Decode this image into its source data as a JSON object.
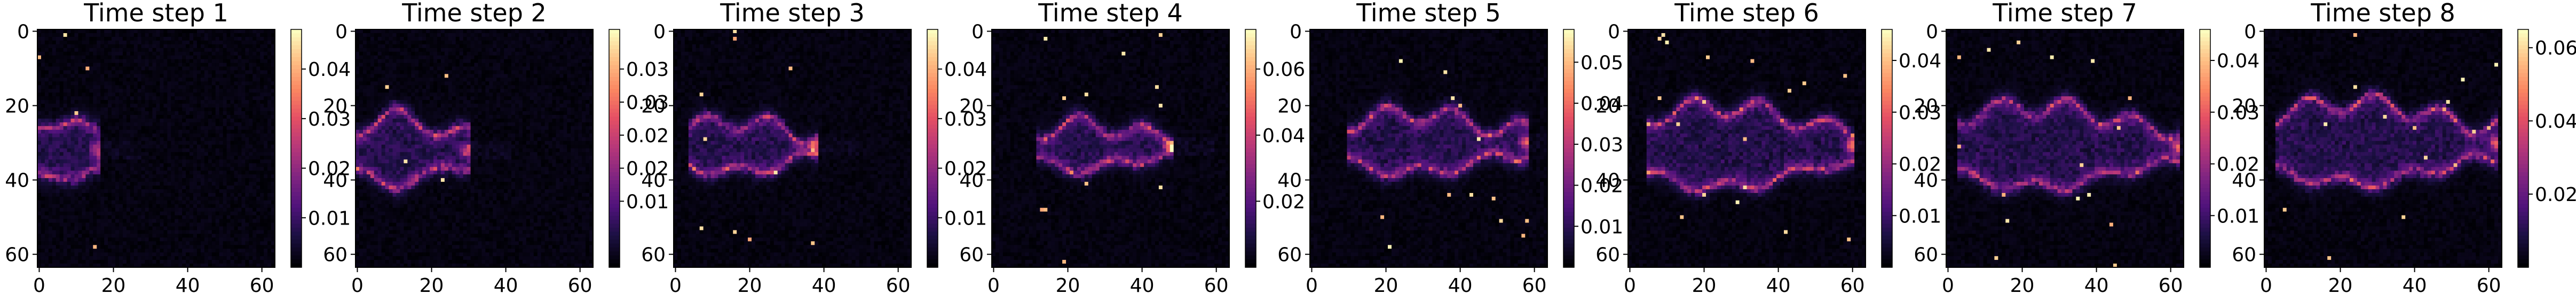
{
  "chart_data": {
    "type": "heatmap",
    "colormap": "magma",
    "grid": false,
    "panels": [
      {
        "title": "Time step 1",
        "x_ticks": [
          "0",
          "20",
          "40",
          "60"
        ],
        "y_ticks": [
          "0",
          "20",
          "40",
          "60"
        ],
        "xlim": [
          0,
          63
        ],
        "ylim": [
          63,
          0
        ],
        "colorbar": {
          "ticks": [
            "0.01",
            "0.02",
            "0.03",
            "0.04"
          ],
          "tick_values": [
            0.01,
            0.02,
            0.03,
            0.04
          ],
          "range": [
            0,
            0.048
          ]
        },
        "feature": {
          "kind": "plume_front",
          "x0": 0,
          "x_end": 16,
          "y_center": 32,
          "half_width": 9,
          "peak": 0.046
        }
      },
      {
        "title": "Time step 2",
        "x_ticks": [
          "0",
          "20",
          "40",
          "60"
        ],
        "y_ticks": [
          "0",
          "20",
          "40",
          "60"
        ],
        "xlim": [
          0,
          63
        ],
        "ylim": [
          63,
          0
        ],
        "colorbar": {
          "ticks": [
            "0.01",
            "0.02",
            "0.02",
            "0.03",
            "0.03"
          ],
          "tick_values": [
            0.01,
            0.015,
            0.02,
            0.025,
            0.03
          ],
          "range": [
            0,
            0.036
          ]
        },
        "feature": {
          "kind": "plume_front",
          "x0": 0,
          "x_end": 30,
          "y_center": 32,
          "half_width": 9,
          "peak": 0.035
        }
      },
      {
        "title": "Time step 3",
        "x_ticks": [
          "0",
          "20",
          "40",
          "60"
        ],
        "y_ticks": [
          "0",
          "20",
          "40",
          "60"
        ],
        "xlim": [
          0,
          63
        ],
        "ylim": [
          63,
          0
        ],
        "colorbar": {
          "ticks": [
            "0.01",
            "0.02",
            "0.03",
            "0.04"
          ],
          "tick_values": [
            0.01,
            0.02,
            0.03,
            0.04
          ],
          "range": [
            0,
            0.048
          ]
        },
        "feature": {
          "kind": "plume_front",
          "x0": 4,
          "x_end": 38,
          "y_center": 31,
          "half_width": 7,
          "peak": 0.046
        }
      },
      {
        "title": "Time step 4",
        "x_ticks": [
          "0",
          "20",
          "40",
          "60"
        ],
        "y_ticks": [
          "0",
          "20",
          "40",
          "60"
        ],
        "xlim": [
          0,
          63
        ],
        "ylim": [
          63,
          0
        ],
        "colorbar": {
          "ticks": [
            "0.02",
            "0.04",
            "0.06"
          ],
          "tick_values": [
            0.02,
            0.04,
            0.06
          ],
          "range": [
            0,
            0.072
          ]
        },
        "feature": {
          "kind": "plume_front",
          "x0": 12,
          "x_end": 48,
          "y_center": 31,
          "half_width": 6,
          "peak": 0.07
        }
      },
      {
        "title": "Time step 5",
        "x_ticks": [
          "0",
          "20",
          "40",
          "60"
        ],
        "y_ticks": [
          "0",
          "20",
          "40",
          "60"
        ],
        "xlim": [
          0,
          63
        ],
        "ylim": [
          63,
          0
        ],
        "colorbar": {
          "ticks": [
            "0.01",
            "0.02",
            "0.03",
            "0.04",
            "0.05"
          ],
          "tick_values": [
            0.01,
            0.02,
            0.03,
            0.04,
            0.05
          ],
          "range": [
            0,
            0.058
          ]
        },
        "feature": {
          "kind": "plume_front",
          "x0": 10,
          "x_end": 58,
          "y_center": 30,
          "half_width": 8,
          "peak": 0.057
        }
      },
      {
        "title": "Time step 6",
        "x_ticks": [
          "0",
          "20",
          "40",
          "60"
        ],
        "y_ticks": [
          "0",
          "20",
          "40",
          "60"
        ],
        "xlim": [
          0,
          63
        ],
        "ylim": [
          63,
          0
        ],
        "colorbar": {
          "ticks": [
            "0.01",
            "0.02",
            "0.03",
            "0.04"
          ],
          "tick_values": [
            0.01,
            0.02,
            0.03,
            0.04
          ],
          "range": [
            0,
            0.046
          ]
        },
        "feature": {
          "kind": "plume_front",
          "x0": 5,
          "x_end": 60,
          "y_center": 31,
          "half_width": 11,
          "peak": 0.045
        }
      },
      {
        "title": "Time step 7",
        "x_ticks": [
          "0",
          "20",
          "40",
          "60"
        ],
        "y_ticks": [
          "0",
          "20",
          "40",
          "60"
        ],
        "xlim": [
          0,
          63
        ],
        "ylim": [
          63,
          0
        ],
        "colorbar": {
          "ticks": [
            "0.01",
            "0.02",
            "0.03",
            "0.04"
          ],
          "tick_values": [
            0.01,
            0.02,
            0.03,
            0.04
          ],
          "range": [
            0,
            0.046
          ]
        },
        "feature": {
          "kind": "plume_front",
          "x0": 3,
          "x_end": 62,
          "y_center": 31,
          "half_width": 11,
          "peak": 0.045
        }
      },
      {
        "title": "Time step 8",
        "x_ticks": [
          "0",
          "20",
          "40",
          "60"
        ],
        "y_ticks": [
          "0",
          "20",
          "40",
          "60"
        ],
        "xlim": [
          0,
          63
        ],
        "ylim": [
          63,
          0
        ],
        "colorbar": {
          "ticks": [
            "0.02",
            "0.04",
            "0.06"
          ],
          "tick_values": [
            0.02,
            0.04,
            0.06
          ],
          "range": [
            0,
            0.065
          ]
        },
        "feature": {
          "kind": "plume_front",
          "x0": 3,
          "x_end": 62,
          "y_center": 30,
          "half_width": 11,
          "peak": 0.064
        }
      }
    ]
  }
}
